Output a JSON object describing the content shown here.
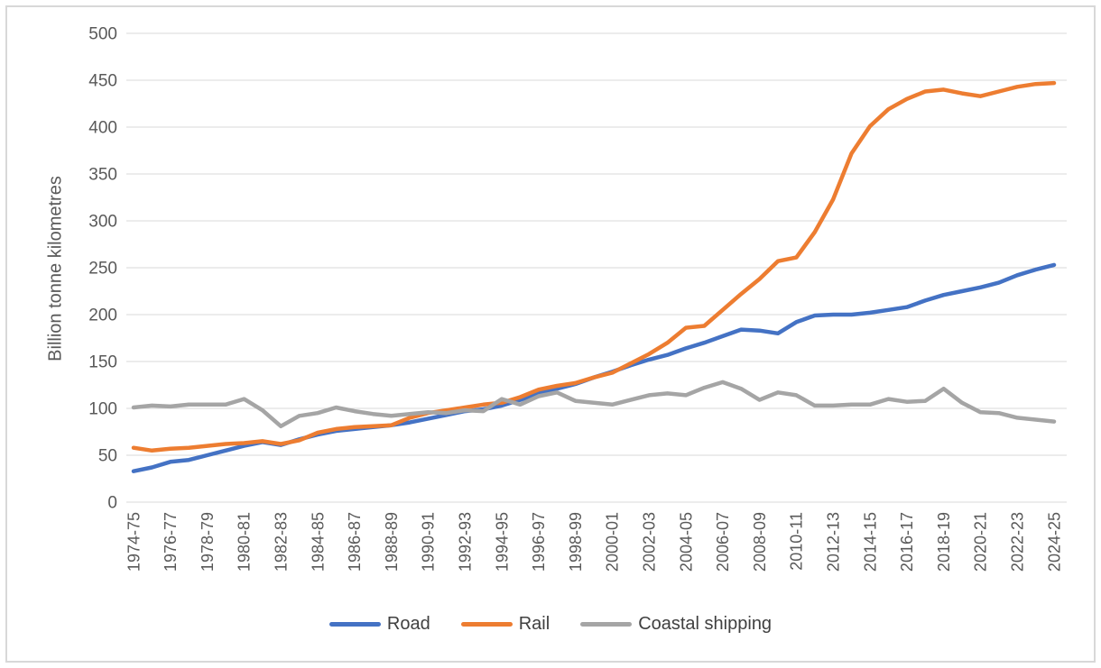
{
  "colors": {
    "background": "#ffffff",
    "grid": "#d9d9d9",
    "border": "#d8d8d8",
    "axis_text": "#595959",
    "legend_text": "#404040"
  },
  "chart_data": {
    "type": "line",
    "title": "",
    "xlabel": "",
    "ylabel": "Billion tonne kilometres",
    "ylim": [
      0,
      500
    ],
    "ytick_step": 50,
    "x_tick_every": 2,
    "grid": true,
    "legend_position": "bottom",
    "categories": [
      "1974-75",
      "1975-76",
      "1976-77",
      "1977-78",
      "1978-79",
      "1979-80",
      "1980-81",
      "1981-82",
      "1982-83",
      "1983-84",
      "1984-85",
      "1985-86",
      "1986-87",
      "1987-88",
      "1988-89",
      "1989-90",
      "1990-91",
      "1991-92",
      "1992-93",
      "1993-94",
      "1994-95",
      "1995-96",
      "1996-97",
      "1997-98",
      "1998-99",
      "1999-00",
      "2000-01",
      "2001-02",
      "2002-03",
      "2003-04",
      "2004-05",
      "2005-06",
      "2006-07",
      "2007-08",
      "2008-09",
      "2009-10",
      "2010-11",
      "2011-12",
      "2012-13",
      "2013-14",
      "2014-15",
      "2015-16",
      "2016-17",
      "2017-18",
      "2018-19",
      "2019-20",
      "2020-21",
      "2021-22",
      "2022-23",
      "2023-24",
      "2024-25"
    ],
    "series": [
      {
        "name": "Road",
        "color": "#4472C4",
        "values": [
          33,
          37,
          43,
          45,
          50,
          55,
          60,
          64,
          61,
          67,
          72,
          76,
          78,
          80,
          82,
          85,
          89,
          93,
          97,
          99,
          103,
          109,
          116,
          121,
          126,
          133,
          139,
          146,
          152,
          157,
          164,
          170,
          177,
          184,
          183,
          180,
          192,
          199,
          200,
          200,
          202,
          205,
          208,
          215,
          221,
          225,
          229,
          234,
          242,
          248,
          253
        ]
      },
      {
        "name": "Rail",
        "color": "#ED7D31",
        "values": [
          58,
          55,
          57,
          58,
          60,
          62,
          63,
          65,
          62,
          66,
          74,
          78,
          80,
          81,
          82,
          90,
          95,
          98,
          101,
          104,
          106,
          112,
          120,
          124,
          127,
          133,
          138,
          148,
          158,
          170,
          186,
          188,
          205,
          222,
          238,
          257,
          261,
          288,
          323,
          372,
          401,
          419,
          430,
          438,
          440,
          436,
          433,
          438,
          443,
          446,
          447
        ]
      },
      {
        "name": "Coastal shipping",
        "color": "#A5A5A5",
        "values": [
          101,
          103,
          102,
          104,
          104,
          104,
          110,
          98,
          81,
          92,
          95,
          101,
          97,
          94,
          92,
          94,
          96,
          95,
          98,
          97,
          110,
          104,
          113,
          117,
          108,
          106,
          104,
          109,
          114,
          116,
          114,
          122,
          128,
          121,
          109,
          117,
          114,
          103,
          103,
          104,
          104,
          110,
          107,
          108,
          121,
          106,
          96,
          95,
          90,
          88,
          86
        ]
      }
    ]
  }
}
